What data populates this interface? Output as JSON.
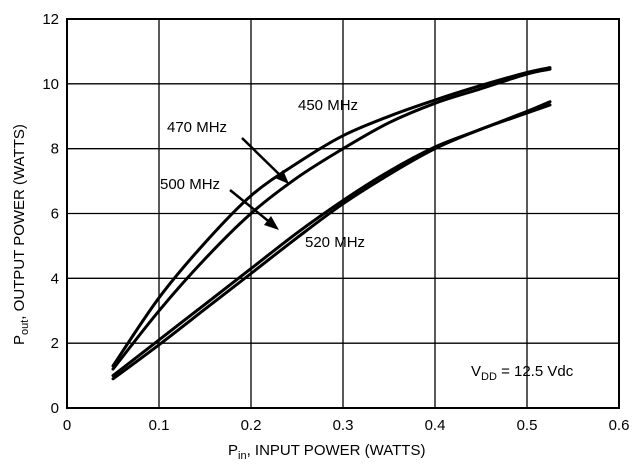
{
  "chart_data": {
    "type": "line",
    "title": "",
    "xlabel_main": "P",
    "xlabel_sub": "in",
    "xlabel_rest": ", INPUT POWER (WATTS)",
    "ylabel_main": "P",
    "ylabel_sub": "out",
    "ylabel_rest": ", OUTPUT POWER (WATTS)",
    "xlim": [
      0,
      0.6
    ],
    "ylim": [
      0,
      12
    ],
    "xticks": [
      "0",
      "0.1",
      "0.2",
      "0.3",
      "0.4",
      "0.5",
      "0.6"
    ],
    "yticks": [
      "0",
      "2",
      "4",
      "6",
      "8",
      "10",
      "12"
    ],
    "grid": true,
    "series": [
      {
        "name": "450 MHz",
        "x": [
          0.05,
          0.1,
          0.15,
          0.2,
          0.25,
          0.3,
          0.35,
          0.4,
          0.45,
          0.5,
          0.525
        ],
        "y": [
          1.2,
          3.0,
          4.6,
          6.0,
          7.1,
          8.0,
          8.8,
          9.4,
          9.85,
          10.3,
          10.45
        ]
      },
      {
        "name": "470 MHz",
        "x": [
          0.05,
          0.1,
          0.15,
          0.2,
          0.25,
          0.3,
          0.35,
          0.4,
          0.45,
          0.5,
          0.525
        ],
        "y": [
          1.3,
          3.4,
          5.1,
          6.55,
          7.55,
          8.4,
          9.0,
          9.5,
          9.95,
          10.35,
          10.5
        ]
      },
      {
        "name": "500 MHz",
        "x": [
          0.05,
          0.1,
          0.15,
          0.2,
          0.25,
          0.3,
          0.35,
          0.4,
          0.45,
          0.5,
          0.525
        ],
        "y": [
          1.0,
          2.1,
          3.2,
          4.3,
          5.4,
          6.4,
          7.3,
          8.05,
          8.6,
          9.15,
          9.45
        ]
      },
      {
        "name": "520 MHz",
        "x": [
          0.05,
          0.1,
          0.15,
          0.2,
          0.25,
          0.3,
          0.35,
          0.4,
          0.45,
          0.5,
          0.525
        ],
        "y": [
          0.9,
          1.95,
          3.05,
          4.15,
          5.25,
          6.3,
          7.2,
          8.0,
          8.6,
          9.1,
          9.35
        ]
      }
    ],
    "annotations": {
      "vdd_main": "V",
      "vdd_sub": "DD",
      "vdd_rest": " = 12.5 Vdc"
    }
  }
}
